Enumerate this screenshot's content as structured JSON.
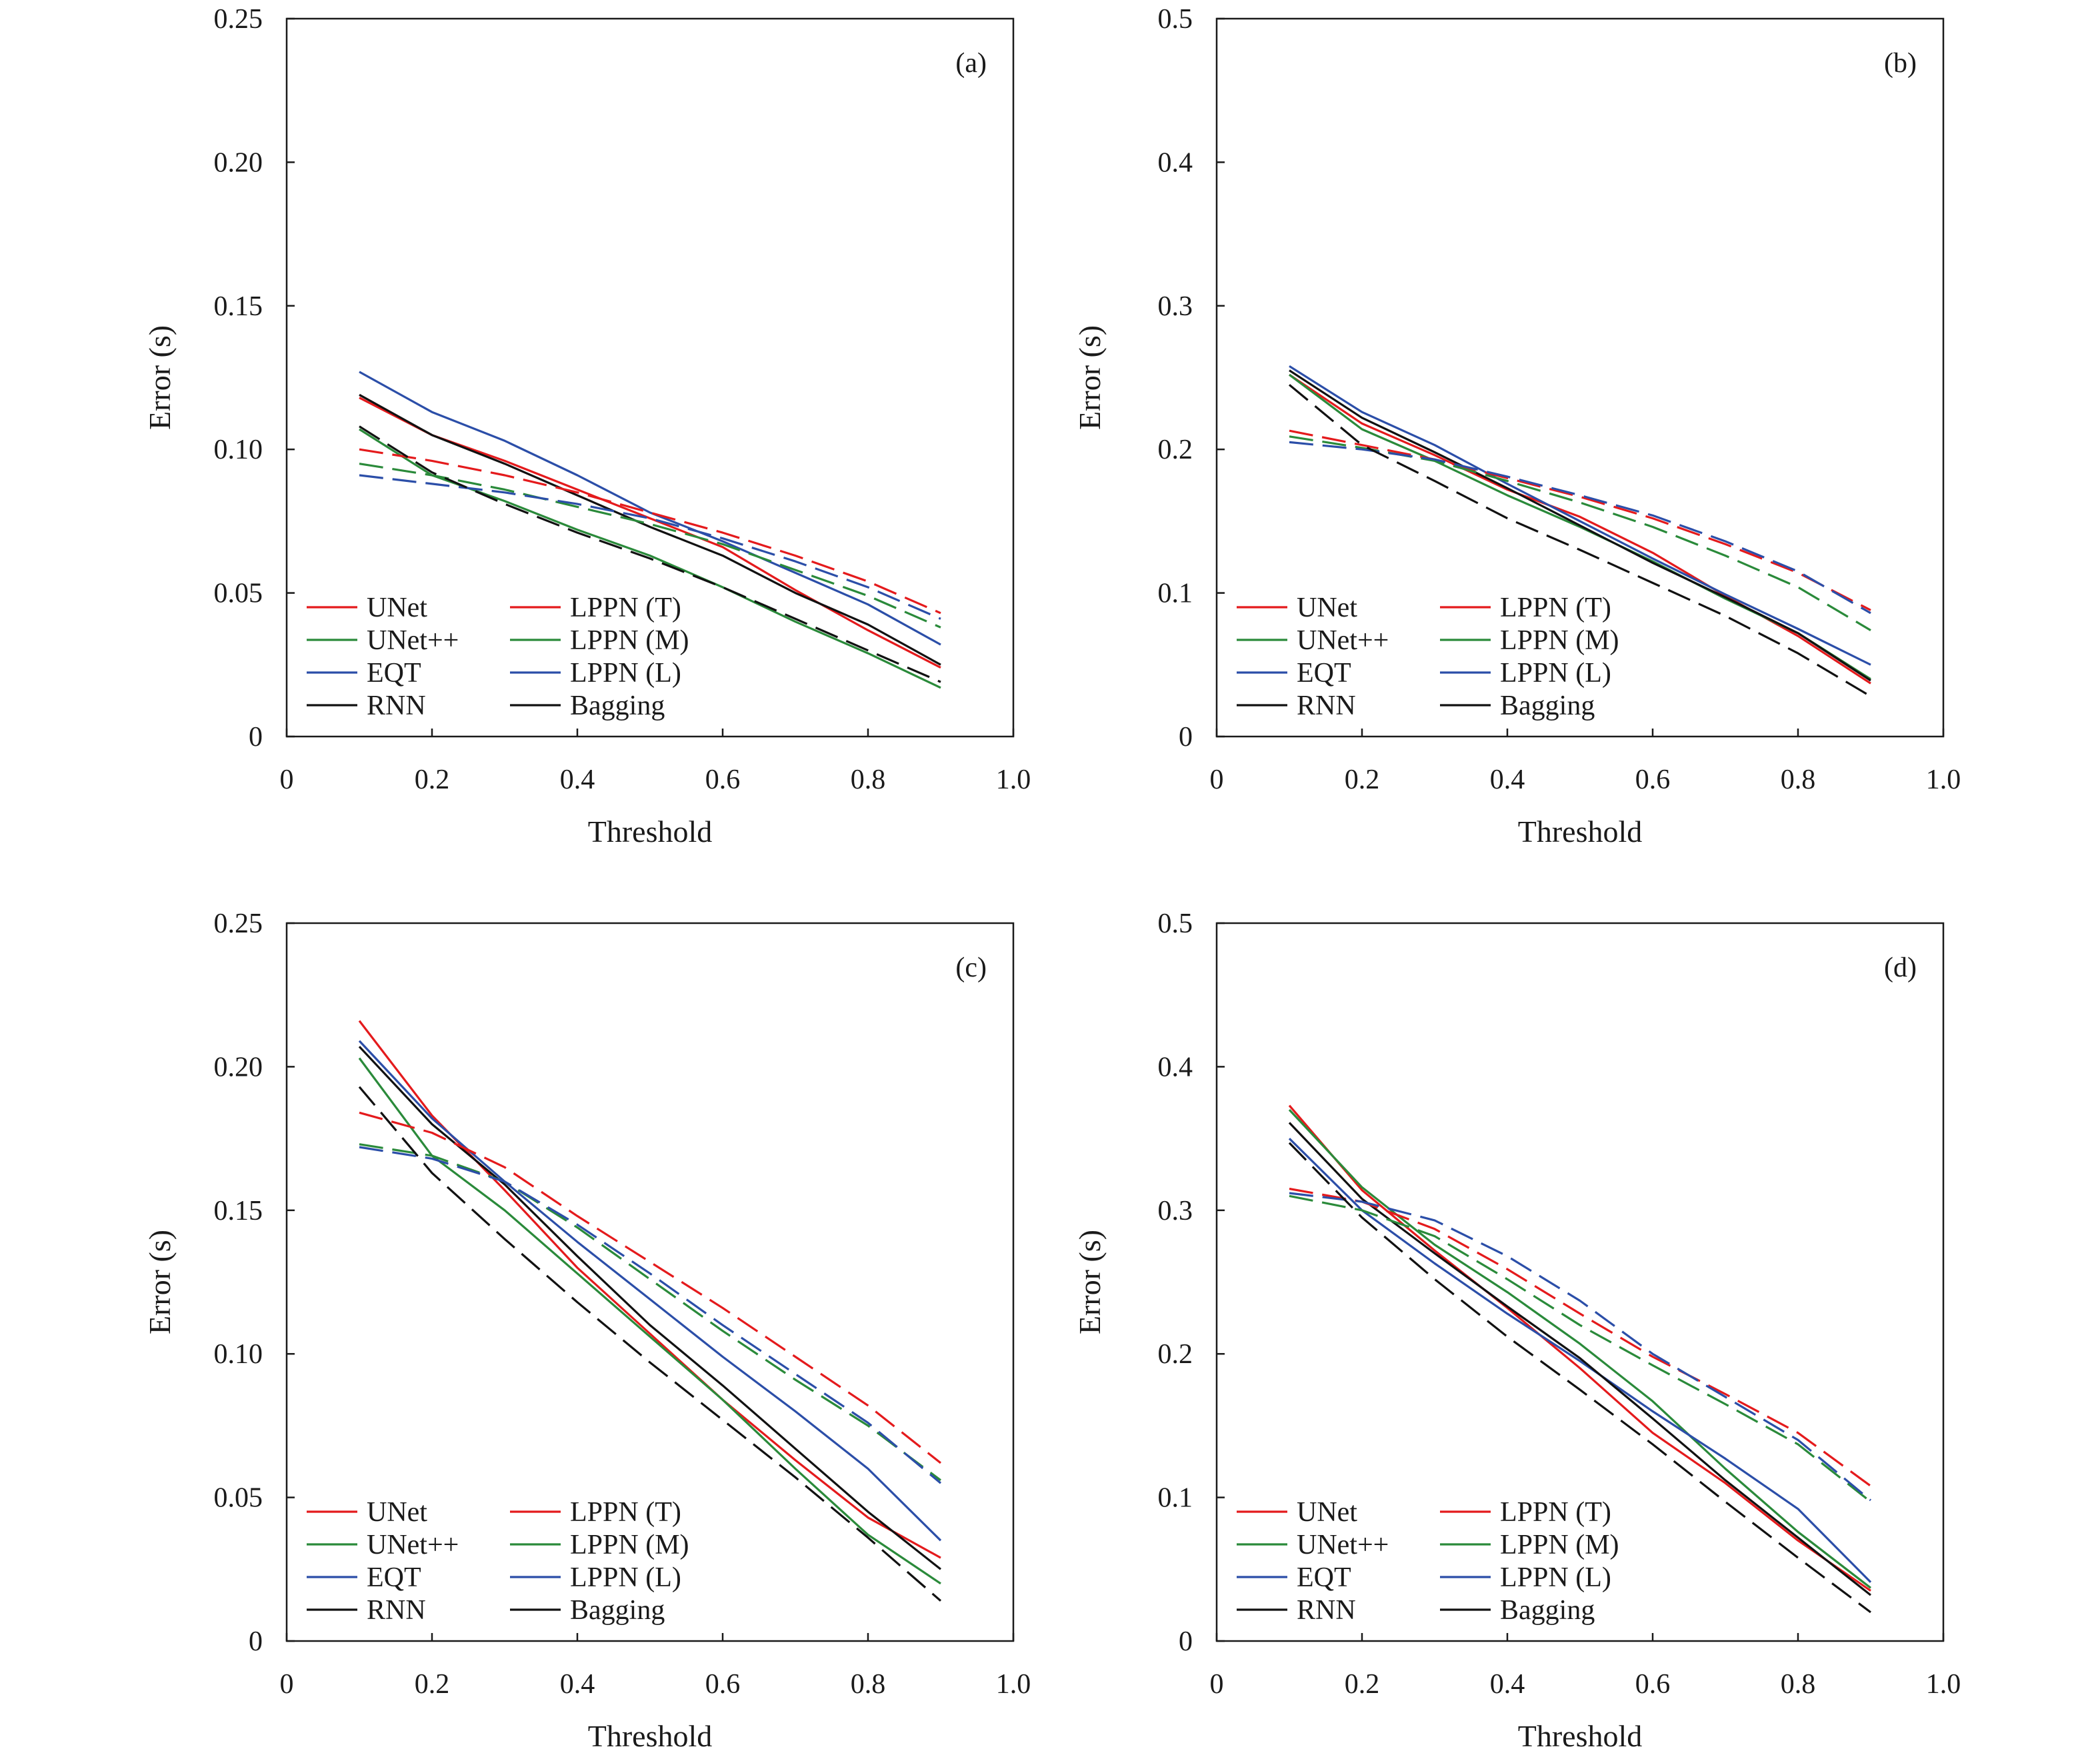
{
  "chart_data": [
    {
      "type": "line",
      "panel_label": "(a)",
      "xlabel": "Threshold",
      "ylabel": "Error (s)",
      "xlim": [
        0,
        1.0
      ],
      "ylim": [
        0,
        0.25
      ],
      "x_ticks": [
        "0",
        "0.2",
        "0.4",
        "0.6",
        "0.8",
        "1.0"
      ],
      "y_ticks": [
        "0",
        "0.05",
        "0.10",
        "0.15",
        "0.20",
        "0.25"
      ],
      "x": [
        0.1,
        0.2,
        0.3,
        0.4,
        0.5,
        0.6,
        0.7,
        0.8,
        0.9
      ],
      "series": [
        {
          "name": "UNet",
          "color": "#e41a1c",
          "dash": false,
          "values": [
            0.118,
            0.105,
            0.096,
            0.086,
            0.076,
            0.066,
            0.051,
            0.037,
            0.024
          ]
        },
        {
          "name": "UNet++",
          "color": "#2a8a3a",
          "dash": false,
          "values": [
            0.107,
            0.091,
            0.082,
            0.072,
            0.063,
            0.052,
            0.04,
            0.029,
            0.017
          ]
        },
        {
          "name": "EQT",
          "color": "#2b4ea8",
          "dash": false,
          "values": [
            0.127,
            0.113,
            0.103,
            0.091,
            0.078,
            0.068,
            0.057,
            0.046,
            0.032
          ]
        },
        {
          "name": "RNN",
          "color": "#111111",
          "dash": false,
          "values": [
            0.119,
            0.105,
            0.095,
            0.084,
            0.073,
            0.063,
            0.05,
            0.039,
            0.025
          ]
        },
        {
          "name": "LPPN (T)",
          "color": "#e41a1c",
          "dash": true,
          "values": [
            0.1,
            0.096,
            0.091,
            0.085,
            0.078,
            0.071,
            0.063,
            0.054,
            0.043
          ]
        },
        {
          "name": "LPPN (M)",
          "color": "#2a8a3a",
          "dash": true,
          "values": [
            0.095,
            0.091,
            0.086,
            0.08,
            0.074,
            0.067,
            0.058,
            0.049,
            0.038
          ]
        },
        {
          "name": "LPPN (L)",
          "color": "#2b4ea8",
          "dash": true,
          "values": [
            0.091,
            0.088,
            0.085,
            0.081,
            0.076,
            0.069,
            0.061,
            0.052,
            0.041
          ]
        },
        {
          "name": "Bagging",
          "color": "#111111",
          "dash": true,
          "values": [
            0.108,
            0.092,
            0.081,
            0.071,
            0.062,
            0.052,
            0.041,
            0.03,
            0.019
          ]
        }
      ]
    },
    {
      "type": "line",
      "panel_label": "(b)",
      "xlabel": "Threshold",
      "ylabel": "Error (s)",
      "xlim": [
        0,
        1.0
      ],
      "ylim": [
        0,
        0.5
      ],
      "x_ticks": [
        "0",
        "0.2",
        "0.4",
        "0.6",
        "0.8",
        "1.0"
      ],
      "y_ticks": [
        "0",
        "0.1",
        "0.2",
        "0.3",
        "0.4",
        "0.5"
      ],
      "x": [
        0.1,
        0.2,
        0.3,
        0.4,
        0.5,
        0.6,
        0.7,
        0.8,
        0.9
      ],
      "series": [
        {
          "name": "UNet",
          "color": "#e41a1c",
          "dash": false,
          "values": [
            0.252,
            0.218,
            0.196,
            0.172,
            0.153,
            0.128,
            0.098,
            0.07,
            0.037
          ]
        },
        {
          "name": "UNet++",
          "color": "#2a8a3a",
          "dash": false,
          "values": [
            0.252,
            0.214,
            0.192,
            0.168,
            0.146,
            0.122,
            0.096,
            0.072,
            0.04
          ]
        },
        {
          "name": "EQT",
          "color": "#2b4ea8",
          "dash": false,
          "values": [
            0.258,
            0.226,
            0.203,
            0.176,
            0.15,
            0.124,
            0.099,
            0.075,
            0.05
          ]
        },
        {
          "name": "RNN",
          "color": "#111111",
          "dash": false,
          "values": [
            0.255,
            0.222,
            0.198,
            0.173,
            0.147,
            0.121,
            0.097,
            0.072,
            0.039
          ]
        },
        {
          "name": "LPPN (T)",
          "color": "#e41a1c",
          "dash": true,
          "values": [
            0.213,
            0.203,
            0.193,
            0.18,
            0.167,
            0.152,
            0.134,
            0.114,
            0.088
          ]
        },
        {
          "name": "LPPN (M)",
          "color": "#2a8a3a",
          "dash": true,
          "values": [
            0.209,
            0.201,
            0.192,
            0.178,
            0.163,
            0.146,
            0.126,
            0.104,
            0.074
          ]
        },
        {
          "name": "LPPN (L)",
          "color": "#2b4ea8",
          "dash": true,
          "values": [
            0.205,
            0.2,
            0.193,
            0.181,
            0.168,
            0.154,
            0.136,
            0.115,
            0.086
          ]
        },
        {
          "name": "Bagging",
          "color": "#111111",
          "dash": true,
          "values": [
            0.245,
            0.203,
            0.178,
            0.152,
            0.13,
            0.107,
            0.084,
            0.058,
            0.028
          ]
        }
      ]
    },
    {
      "type": "line",
      "panel_label": "(c)",
      "xlabel": "Threshold",
      "ylabel": "Error (s)",
      "xlim": [
        0,
        1.0
      ],
      "ylim": [
        0,
        0.25
      ],
      "x_ticks": [
        "0",
        "0.2",
        "0.4",
        "0.6",
        "0.8",
        "1.0"
      ],
      "y_ticks": [
        "0",
        "0.05",
        "0.10",
        "0.15",
        "0.20",
        "0.25"
      ],
      "x": [
        0.1,
        0.2,
        0.3,
        0.4,
        0.5,
        0.6,
        0.7,
        0.8,
        0.9
      ],
      "series": [
        {
          "name": "UNet",
          "color": "#e41a1c",
          "dash": false,
          "values": [
            0.216,
            0.183,
            0.157,
            0.13,
            0.107,
            0.084,
            0.063,
            0.043,
            0.029
          ]
        },
        {
          "name": "UNet++",
          "color": "#2a8a3a",
          "dash": false,
          "values": [
            0.203,
            0.169,
            0.15,
            0.128,
            0.106,
            0.084,
            0.06,
            0.037,
            0.02
          ]
        },
        {
          "name": "EQT",
          "color": "#2b4ea8",
          "dash": false,
          "values": [
            0.209,
            0.182,
            0.16,
            0.139,
            0.119,
            0.099,
            0.08,
            0.06,
            0.035
          ]
        },
        {
          "name": "RNN",
          "color": "#111111",
          "dash": false,
          "values": [
            0.207,
            0.18,
            0.159,
            0.134,
            0.11,
            0.089,
            0.067,
            0.045,
            0.025
          ]
        },
        {
          "name": "LPPN (T)",
          "color": "#e41a1c",
          "dash": true,
          "values": [
            0.184,
            0.177,
            0.165,
            0.148,
            0.132,
            0.116,
            0.099,
            0.082,
            0.062
          ]
        },
        {
          "name": "LPPN (M)",
          "color": "#2a8a3a",
          "dash": true,
          "values": [
            0.173,
            0.169,
            0.16,
            0.144,
            0.126,
            0.108,
            0.091,
            0.075,
            0.056
          ]
        },
        {
          "name": "LPPN (L)",
          "color": "#2b4ea8",
          "dash": true,
          "values": [
            0.172,
            0.168,
            0.16,
            0.145,
            0.128,
            0.11,
            0.093,
            0.076,
            0.055
          ]
        },
        {
          "name": "Bagging",
          "color": "#111111",
          "dash": true,
          "values": [
            0.193,
            0.163,
            0.14,
            0.118,
            0.097,
            0.077,
            0.057,
            0.036,
            0.014
          ]
        }
      ]
    },
    {
      "type": "line",
      "panel_label": "(d)",
      "xlabel": "Threshold",
      "ylabel": "Error (s)",
      "xlim": [
        0,
        1.0
      ],
      "ylim": [
        0,
        0.5
      ],
      "x_ticks": [
        "0",
        "0.2",
        "0.4",
        "0.6",
        "0.8",
        "1.0"
      ],
      "y_ticks": [
        "0",
        "0.1",
        "0.2",
        "0.3",
        "0.4",
        "0.5"
      ],
      "x": [
        0.1,
        0.2,
        0.3,
        0.4,
        0.5,
        0.6,
        0.7,
        0.8,
        0.9
      ],
      "series": [
        {
          "name": "UNet",
          "color": "#e41a1c",
          "dash": false,
          "values": [
            0.373,
            0.314,
            0.272,
            0.232,
            0.19,
            0.145,
            0.11,
            0.07,
            0.035
          ]
        },
        {
          "name": "UNet++",
          "color": "#2a8a3a",
          "dash": false,
          "values": [
            0.37,
            0.316,
            0.276,
            0.243,
            0.207,
            0.167,
            0.12,
            0.076,
            0.037
          ]
        },
        {
          "name": "EQT",
          "color": "#2b4ea8",
          "dash": false,
          "values": [
            0.35,
            0.3,
            0.263,
            0.228,
            0.195,
            0.16,
            0.127,
            0.092,
            0.041
          ]
        },
        {
          "name": "RNN",
          "color": "#111111",
          "dash": false,
          "values": [
            0.361,
            0.308,
            0.27,
            0.233,
            0.197,
            0.155,
            0.112,
            0.072,
            0.032
          ]
        },
        {
          "name": "LPPN (T)",
          "color": "#e41a1c",
          "dash": true,
          "values": [
            0.315,
            0.306,
            0.287,
            0.259,
            0.228,
            0.198,
            0.172,
            0.145,
            0.108
          ]
        },
        {
          "name": "LPPN (M)",
          "color": "#2a8a3a",
          "dash": true,
          "values": [
            0.31,
            0.3,
            0.282,
            0.252,
            0.22,
            0.192,
            0.165,
            0.137,
            0.097
          ]
        },
        {
          "name": "LPPN (L)",
          "color": "#2b4ea8",
          "dash": true,
          "values": [
            0.312,
            0.306,
            0.293,
            0.268,
            0.237,
            0.2,
            0.17,
            0.14,
            0.098
          ]
        },
        {
          "name": "Bagging",
          "color": "#111111",
          "dash": true,
          "values": [
            0.347,
            0.295,
            0.252,
            0.212,
            0.175,
            0.137,
            0.097,
            0.058,
            0.02
          ]
        }
      ]
    }
  ]
}
